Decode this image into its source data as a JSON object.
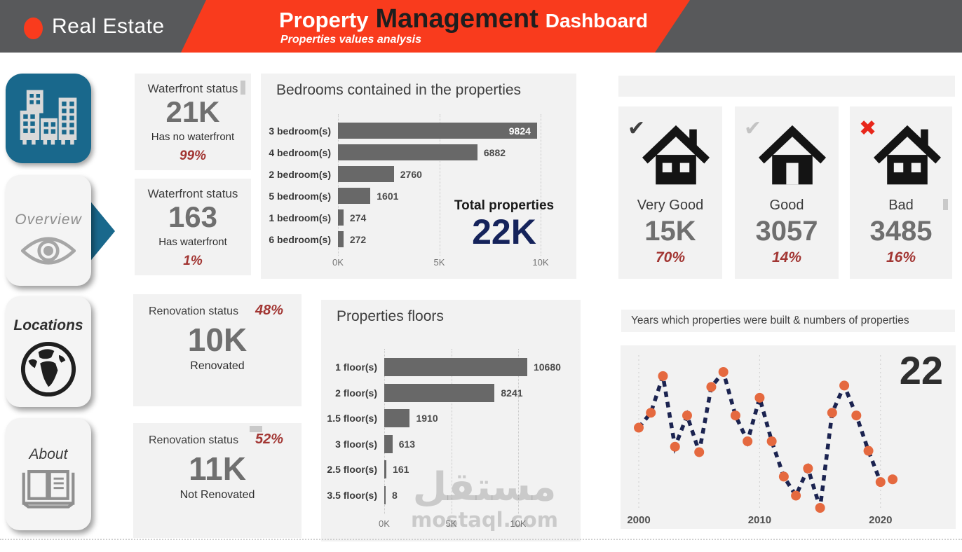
{
  "header": {
    "brand": "Real Estate",
    "title": {
      "part1": "Property",
      "part2": "Management",
      "part3": "Dashboard"
    },
    "subtitle": "Properties values analysis"
  },
  "sidebar": {
    "items": [
      {
        "label": "",
        "icon": "buildings-icon"
      },
      {
        "label": "Overview",
        "icon": "eye-icon",
        "active": true
      },
      {
        "label": "Locations",
        "icon": "globe-icon"
      },
      {
        "label": "About",
        "icon": "open-book-icon"
      }
    ]
  },
  "cards": {
    "waterfront": [
      {
        "title": "Waterfront status",
        "value": "21K",
        "label": "Has no waterfront",
        "percent": "99%"
      },
      {
        "title": "Waterfront status",
        "value": "163",
        "label": "Has waterfront",
        "percent": "1%"
      }
    ],
    "renovation": [
      {
        "title": "Renovation status",
        "percent": "48%",
        "value": "10K",
        "label": "Renovated"
      },
      {
        "title": "Renovation status",
        "percent": "52%",
        "value": "11K",
        "label": "Not Renovated"
      }
    ],
    "condition": [
      {
        "label": "Very Good",
        "value": "15K",
        "percent": "70%",
        "mark": "✔",
        "mark_style": "dark",
        "house_variant": "windows-chimney"
      },
      {
        "label": "Good",
        "value": "3057",
        "percent": "14%",
        "mark": "✔",
        "mark_style": "light",
        "house_variant": "door"
      },
      {
        "label": "Bad",
        "value": "3485",
        "percent": "16%",
        "mark": "✖",
        "mark_style": "red",
        "house_variant": "windows-chimney"
      }
    ]
  },
  "chart_data": [
    {
      "type": "bar",
      "orientation": "horizontal",
      "title": "Bedrooms contained in the properties",
      "categories": [
        "3 bedroom(s)",
        "4 bedroom(s)",
        "2 bedroom(s)",
        "5 bedroom(s)",
        "1 bedroom(s)",
        "6 bedroom(s)"
      ],
      "values": [
        9824,
        6882,
        2760,
        1601,
        274,
        272
      ],
      "x_ticks": [
        "0K",
        "5K",
        "10K"
      ],
      "xlim": [
        0,
        10000
      ],
      "grid": "dotted-vertical",
      "first_label_inside": true,
      "total_label": "Total properties",
      "total_value": "22K"
    },
    {
      "type": "bar",
      "orientation": "horizontal",
      "title": "Properties floors",
      "categories": [
        "1 floor(s)",
        "2 floor(s)",
        "1.5 floor(s)",
        "3 floor(s)",
        "2.5 floor(s)",
        "3.5 floor(s)"
      ],
      "values": [
        10680,
        8241,
        1910,
        613,
        161,
        8
      ],
      "x_ticks": [
        "0K",
        "5K",
        "10K"
      ],
      "xlim": [
        0,
        10000
      ],
      "grid": "dotted-vertical",
      "first_label_inside": false
    },
    {
      "type": "line",
      "title": "Years which properties were built & numbers of properties",
      "x": [
        2000,
        2001,
        2002,
        2003,
        2004,
        2005,
        2006,
        2007,
        2008,
        2009,
        2010,
        2011,
        2012,
        2013,
        2014,
        2015,
        2016,
        2017,
        2018,
        2019,
        2020,
        2021
      ],
      "values_relative": [
        59,
        70,
        97,
        45,
        68,
        41,
        89,
        100,
        68,
        49,
        81,
        49,
        23,
        9,
        29,
        0,
        70,
        90,
        68,
        42,
        19,
        21
      ],
      "x_ticks": [
        "2000",
        "2010",
        "2020"
      ],
      "annotation": "22",
      "line_style": "dashed",
      "marker_color": "#E5693F",
      "line_color": "#1B2350",
      "legend": "none"
    }
  ],
  "watermark": {
    "arabic": "مستقل",
    "latin": "mostaql.com"
  },
  "colors": {
    "header_gray": "#58595B",
    "accent_orange": "#F93B1D",
    "teal": "#19688C",
    "card_bg": "#F2F2F2",
    "bar_gray": "#686868",
    "value_gray": "#6F6F6F",
    "percent_red": "#A23633",
    "navy_total": "#15235B",
    "line_navy": "#1B2350",
    "dot_orange": "#E5693F",
    "mark_dark": "#3F3F3F",
    "mark_light": "#C3C3C3",
    "mark_red": "#E8271B"
  }
}
